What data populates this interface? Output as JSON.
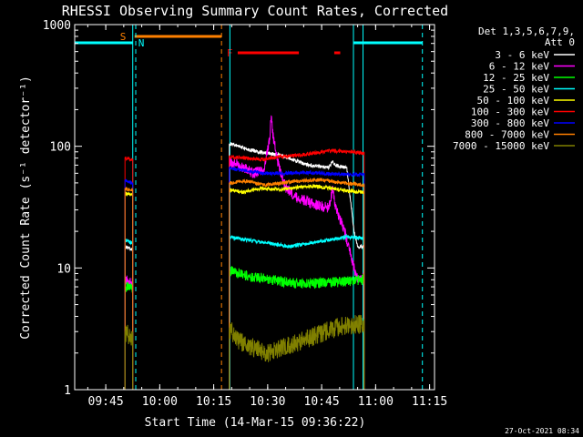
{
  "chart_data": {
    "type": "line",
    "title": "RHESSI Observing Summary Count Rates, Corrected",
    "xlabel": "Start Time (14-Mar-15 09:36:22)",
    "ylabel": "Corrected Count Rate (s⁻¹ detector⁻¹)",
    "y_scale": "log",
    "ylim": [
      1,
      1000
    ],
    "xlim": [
      "09:36:22",
      "11:16:22"
    ],
    "x_ticks": [
      "09:45",
      "10:00",
      "10:15",
      "10:30",
      "10:45",
      "11:00",
      "11:15"
    ],
    "y_ticks": [
      "1",
      "10",
      "100",
      "1000"
    ],
    "legend_header": [
      "Det 1,3,5,6,7,9,",
      "Att 0"
    ],
    "legend_position": "top-right (outside plot)",
    "footer_date": "27-Oct-2021 08:34",
    "flags": {
      "S": {
        "label": "S",
        "color": "#ff8000",
        "start": "09:53:00",
        "end": "10:17:10"
      },
      "N": {
        "label": "N",
        "color": "#00ffff",
        "start": "09:36:22",
        "end": "09:52:30"
      },
      "N2": {
        "color": "#00ffff",
        "start": "10:53:50",
        "end": "11:13:00"
      },
      "F": {
        "label": "F",
        "color": "#ff0000",
        "segments": [
          [
            "10:21:40",
            "10:38:40"
          ],
          [
            "10:48:30",
            "10:50:10"
          ]
        ]
      }
    },
    "markers": [
      {
        "time": "09:36:22",
        "color": "#00ffff",
        "style": "solid"
      },
      {
        "time": "09:52:30",
        "color": "#00ffff",
        "style": "solid"
      },
      {
        "time": "09:53:20",
        "color": "#00ffff",
        "style": "dashed"
      },
      {
        "time": "10:17:10",
        "color": "#ff8000",
        "style": "dashed"
      },
      {
        "time": "10:19:30",
        "color": "#00ffff",
        "style": "solid"
      },
      {
        "time": "10:53:50",
        "color": "#00ffff",
        "style": "solid"
      },
      {
        "time": "10:56:30",
        "color": "#00ffff",
        "style": "solid"
      },
      {
        "time": "11:13:00",
        "color": "#00ffff",
        "style": "dashed"
      }
    ],
    "data_intervals": [
      [
        "09:50:20",
        "09:52:30"
      ],
      [
        "10:19:20",
        "10:56:50"
      ]
    ],
    "series": [
      {
        "name": "3 - 6 keV",
        "color": "#ffffff",
        "points": [
          [
            "09:50:20",
            15
          ],
          [
            "09:52:30",
            14
          ],
          [
            "10:19:20",
            105
          ],
          [
            "10:22:00",
            100
          ],
          [
            "10:26:00",
            92
          ],
          [
            "10:30:00",
            88
          ],
          [
            "10:33:00",
            85
          ],
          [
            "10:36:00",
            80
          ],
          [
            "10:40:00",
            72
          ],
          [
            "10:44:00",
            68
          ],
          [
            "10:47:00",
            67
          ],
          [
            "10:48:00",
            75
          ],
          [
            "10:49:00",
            70
          ],
          [
            "10:52:00",
            66
          ],
          [
            "10:54:00",
            20
          ],
          [
            "10:55:00",
            15
          ],
          [
            "10:56:50",
            15
          ]
        ]
      },
      {
        "name": "6 - 12 keV",
        "color": "#ff00ff",
        "points": [
          [
            "09:50:20",
            8
          ],
          [
            "09:52:30",
            7.5
          ],
          [
            "10:19:20",
            75
          ],
          [
            "10:22:00",
            70
          ],
          [
            "10:26:00",
            60
          ],
          [
            "10:29:00",
            65
          ],
          [
            "10:30:30",
            110
          ],
          [
            "10:31:00",
            190
          ],
          [
            "10:31:30",
            120
          ],
          [
            "10:33:00",
            70
          ],
          [
            "10:35:00",
            46
          ],
          [
            "10:38:00",
            38
          ],
          [
            "10:42:00",
            34
          ],
          [
            "10:45:00",
            32
          ],
          [
            "10:47:00",
            31
          ],
          [
            "10:48:00",
            45
          ],
          [
            "10:49:00",
            30
          ],
          [
            "10:51:00",
            22
          ],
          [
            "10:52:30",
            15
          ],
          [
            "10:54:00",
            10
          ],
          [
            "10:55:00",
            8
          ],
          [
            "10:56:50",
            8.5
          ]
        ]
      },
      {
        "name": "12 - 25 keV",
        "color": "#00ff00",
        "points": [
          [
            "09:50:20",
            7
          ],
          [
            "09:52:30",
            6.8
          ],
          [
            "10:19:20",
            9.5
          ],
          [
            "10:25:00",
            8.5
          ],
          [
            "10:31:00",
            8
          ],
          [
            "10:37:00",
            7.5
          ],
          [
            "10:43:00",
            7.5
          ],
          [
            "10:48:00",
            7.6
          ],
          [
            "10:52:00",
            7.8
          ],
          [
            "10:56:50",
            8
          ]
        ]
      },
      {
        "name": "25 - 50 keV",
        "color": "#00ffff",
        "points": [
          [
            "09:50:20",
            17
          ],
          [
            "09:52:30",
            16
          ],
          [
            "10:19:20",
            18
          ],
          [
            "10:24:00",
            17
          ],
          [
            "10:30:00",
            16
          ],
          [
            "10:36:00",
            15
          ],
          [
            "10:42:00",
            16
          ],
          [
            "10:47:00",
            17
          ],
          [
            "10:52:00",
            18
          ],
          [
            "10:56:50",
            17.5
          ]
        ]
      },
      {
        "name": "50 - 100 keV",
        "color": "#ffff00",
        "points": [
          [
            "09:50:20",
            41
          ],
          [
            "09:52:30",
            40
          ],
          [
            "10:19:20",
            44
          ],
          [
            "10:23:00",
            42
          ],
          [
            "10:28:00",
            45
          ],
          [
            "10:33:00",
            44
          ],
          [
            "10:38:00",
            46
          ],
          [
            "10:43:00",
            47
          ],
          [
            "10:48:00",
            45
          ],
          [
            "10:52:00",
            43
          ],
          [
            "10:56:50",
            42
          ]
        ]
      },
      {
        "name": "100 - 300 keV",
        "color": "#ff0000",
        "points": [
          [
            "09:50:20",
            80
          ],
          [
            "09:52:30",
            78
          ],
          [
            "10:19:20",
            82
          ],
          [
            "10:24:00",
            80
          ],
          [
            "10:29:00",
            78
          ],
          [
            "10:33:00",
            82
          ],
          [
            "10:38:00",
            84
          ],
          [
            "10:43:00",
            88
          ],
          [
            "10:48:00",
            92
          ],
          [
            "10:52:00",
            90
          ],
          [
            "10:56:50",
            88
          ]
        ]
      },
      {
        "name": "300 - 800 keV",
        "color": "#0000ff",
        "points": [
          [
            "09:50:20",
            52
          ],
          [
            "09:52:30",
            50
          ],
          [
            "10:19:20",
            66
          ],
          [
            "10:24:00",
            63
          ],
          [
            "10:29:00",
            60
          ],
          [
            "10:34:00",
            60
          ],
          [
            "10:40:00",
            61
          ],
          [
            "10:45:00",
            60
          ],
          [
            "10:50:00",
            59
          ],
          [
            "10:56:50",
            58
          ]
        ]
      },
      {
        "name": "800 - 7000 keV",
        "color": "#ff8000",
        "points": [
          [
            "09:50:20",
            45
          ],
          [
            "09:52:30",
            44
          ],
          [
            "10:19:20",
            50
          ],
          [
            "10:24:00",
            52
          ],
          [
            "10:29:00",
            48
          ],
          [
            "10:34:00",
            50
          ],
          [
            "10:40:00",
            52
          ],
          [
            "10:45:00",
            53
          ],
          [
            "10:50:00",
            50
          ],
          [
            "10:56:50",
            48
          ]
        ]
      },
      {
        "name": "7000 - 15000 keV",
        "color": "#808000",
        "points": [
          [
            "09:50:20",
            3
          ],
          [
            "09:52:30",
            2.6
          ],
          [
            "10:19:20",
            3.2
          ],
          [
            "10:22:00",
            2.5
          ],
          [
            "10:26:00",
            2.2
          ],
          [
            "10:30:00",
            2
          ],
          [
            "10:34:00",
            2.2
          ],
          [
            "10:38:00",
            2.4
          ],
          [
            "10:42:00",
            2.7
          ],
          [
            "10:46:00",
            3
          ],
          [
            "10:50:00",
            3.3
          ],
          [
            "10:56:50",
            3.5
          ]
        ]
      }
    ]
  }
}
